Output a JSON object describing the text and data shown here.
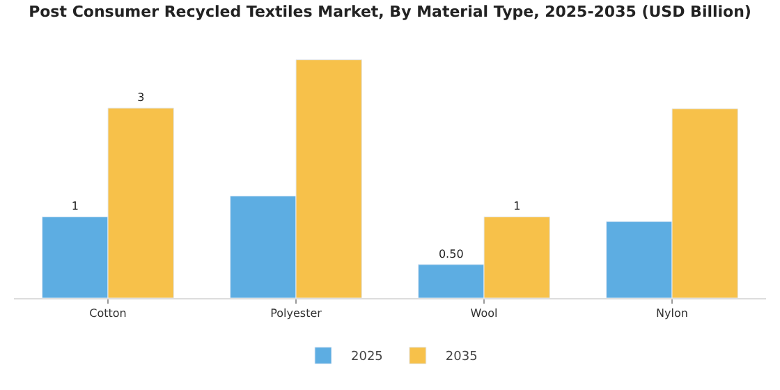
{
  "chart_data": {
    "type": "bar",
    "title": "Post Consumer Recycled Textiles Market, By Material Type, 2025-2035 (USD Billion)",
    "categories": [
      "Cotton",
      "Polyester",
      "Wool",
      "Nylon"
    ],
    "series": [
      {
        "name": "2025",
        "color": "#5dade2",
        "values": [
          1.21,
          1.52,
          0.5,
          1.14
        ],
        "value_labels": [
          "1",
          null,
          "0.50",
          null
        ]
      },
      {
        "name": "2035",
        "color": "#f7c14a",
        "values": [
          2.83,
          3.55,
          1.21,
          2.82
        ],
        "value_labels": [
          "3",
          null,
          "1",
          null
        ]
      }
    ],
    "legend": "bottom"
  }
}
